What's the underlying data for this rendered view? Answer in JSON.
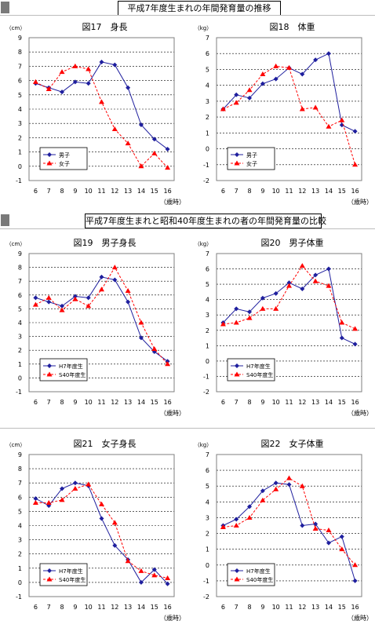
{
  "sections": [
    {
      "title": "平成7年度生まれの年間発育量の推移"
    },
    {
      "title": "平成7年度生まれと昭和40年度生まれの者の年間発育量の比較"
    }
  ],
  "styles": {
    "male_color": "#1f1f9e",
    "female_color": "#ff0000",
    "grid_color": "#000000"
  },
  "chart_data": [
    {
      "type": "line",
      "title": "図17　身長",
      "unit": "（cm）",
      "xlabel": "（歳時）",
      "categories": [
        "6",
        "7",
        "8",
        "9",
        "10",
        "11",
        "12",
        "13",
        "14",
        "15",
        "16"
      ],
      "ylim": [
        -1,
        9
      ],
      "yticks": [
        "9",
        "8",
        "7",
        "6",
        "5",
        "4",
        "3",
        "2",
        "1",
        "0",
        "-1"
      ],
      "legend_position": "bottom-left",
      "series": [
        {
          "name": "男子",
          "style": "male",
          "values": [
            5.8,
            5.5,
            5.2,
            5.9,
            5.8,
            7.3,
            7.1,
            5.5,
            2.9,
            1.9,
            1.2
          ]
        },
        {
          "name": "女子",
          "style": "female",
          "values": [
            5.9,
            5.4,
            6.6,
            7.0,
            6.8,
            4.5,
            2.6,
            1.6,
            0.0,
            0.9,
            -0.1
          ]
        }
      ]
    },
    {
      "type": "line",
      "title": "図18　体重",
      "unit": "（kg）",
      "xlabel": "（歳時）",
      "categories": [
        "6",
        "7",
        "8",
        "9",
        "10",
        "11",
        "12",
        "13",
        "14",
        "15",
        "16"
      ],
      "ylim": [
        -2,
        7
      ],
      "yticks": [
        "7",
        "6",
        "5",
        "4",
        "3",
        "2",
        "1",
        "0",
        "-1",
        "-2"
      ],
      "legend_position": "bottom-left",
      "series": [
        {
          "name": "男子",
          "style": "male",
          "values": [
            2.5,
            3.4,
            3.2,
            4.1,
            4.4,
            5.1,
            4.7,
            5.6,
            6.0,
            1.5,
            1.1
          ]
        },
        {
          "name": "女子",
          "style": "female",
          "values": [
            2.5,
            2.9,
            3.7,
            4.7,
            5.2,
            5.1,
            2.5,
            2.6,
            1.4,
            1.8,
            -1.0
          ]
        }
      ]
    },
    {
      "type": "line",
      "title": "図19　男子身長",
      "unit": "（cm）",
      "xlabel": "（歳時）",
      "categories": [
        "6",
        "7",
        "8",
        "9",
        "10",
        "11",
        "12",
        "13",
        "14",
        "15",
        "16"
      ],
      "ylim": [
        -1,
        9
      ],
      "yticks": [
        "9",
        "8",
        "7",
        "6",
        "5",
        "4",
        "3",
        "2",
        "1",
        "0",
        "-1"
      ],
      "legend_position": "bottom-left",
      "series": [
        {
          "name": "H7年度生",
          "style": "male",
          "values": [
            5.8,
            5.5,
            5.2,
            5.9,
            5.8,
            7.3,
            7.1,
            5.5,
            2.9,
            1.9,
            1.2
          ]
        },
        {
          "name": "S40年度生",
          "style": "female",
          "values": [
            5.3,
            5.8,
            4.9,
            5.7,
            5.2,
            6.4,
            8.0,
            6.3,
            4.0,
            2.1,
            1.0
          ]
        }
      ]
    },
    {
      "type": "line",
      "title": "図20　男子体重",
      "unit": "（kg）",
      "xlabel": "（歳時）",
      "categories": [
        "6",
        "7",
        "8",
        "9",
        "10",
        "11",
        "12",
        "13",
        "14",
        "15",
        "16"
      ],
      "ylim": [
        -2,
        7
      ],
      "yticks": [
        "7",
        "6",
        "5",
        "4",
        "3",
        "2",
        "1",
        "0",
        "-1",
        "-2"
      ],
      "legend_position": "bottom-left",
      "series": [
        {
          "name": "H7年度生",
          "style": "male",
          "values": [
            2.5,
            3.4,
            3.2,
            4.1,
            4.4,
            5.1,
            4.7,
            5.6,
            6.0,
            1.5,
            1.1
          ]
        },
        {
          "name": "S40年度生",
          "style": "female",
          "values": [
            2.4,
            2.5,
            2.8,
            3.4,
            3.4,
            4.9,
            6.2,
            5.2,
            4.9,
            2.5,
            2.1
          ]
        }
      ]
    },
    {
      "type": "line",
      "title": "図21　女子身長",
      "unit": "（cm）",
      "xlabel": "（歳時）",
      "categories": [
        "6",
        "7",
        "8",
        "9",
        "10",
        "11",
        "12",
        "13",
        "14",
        "15",
        "16"
      ],
      "ylim": [
        -1,
        9
      ],
      "yticks": [
        "9",
        "8",
        "7",
        "6",
        "5",
        "4",
        "3",
        "2",
        "1",
        "0",
        "-1"
      ],
      "legend_position": "bottom-left",
      "series": [
        {
          "name": "H7年度生",
          "style": "male",
          "values": [
            5.9,
            5.4,
            6.6,
            7.0,
            6.8,
            4.5,
            2.6,
            1.6,
            0.0,
            0.9,
            -0.1
          ]
        },
        {
          "name": "S40年度生",
          "style": "female",
          "values": [
            5.6,
            5.6,
            5.8,
            6.6,
            6.9,
            5.5,
            4.2,
            1.5,
            0.8,
            0.5,
            0.3
          ]
        }
      ]
    },
    {
      "type": "line",
      "title": "図22　女子体重",
      "unit": "（kg）",
      "xlabel": "（歳時）",
      "categories": [
        "6",
        "7",
        "8",
        "9",
        "10",
        "11",
        "12",
        "13",
        "14",
        "15",
        "16"
      ],
      "ylim": [
        -2,
        7
      ],
      "yticks": [
        "7",
        "6",
        "5",
        "4",
        "3",
        "2",
        "1",
        "0",
        "-1",
        "-2"
      ],
      "legend_position": "bottom-left",
      "series": [
        {
          "name": "H7年度生",
          "style": "male",
          "values": [
            2.5,
            2.9,
            3.7,
            4.7,
            5.2,
            5.1,
            2.5,
            2.6,
            1.4,
            1.8,
            -1.0
          ]
        },
        {
          "name": "S40年度生",
          "style": "female",
          "values": [
            2.4,
            2.5,
            3.0,
            4.1,
            4.8,
            5.5,
            5.0,
            2.3,
            2.2,
            1.0,
            0.0
          ]
        }
      ]
    }
  ]
}
